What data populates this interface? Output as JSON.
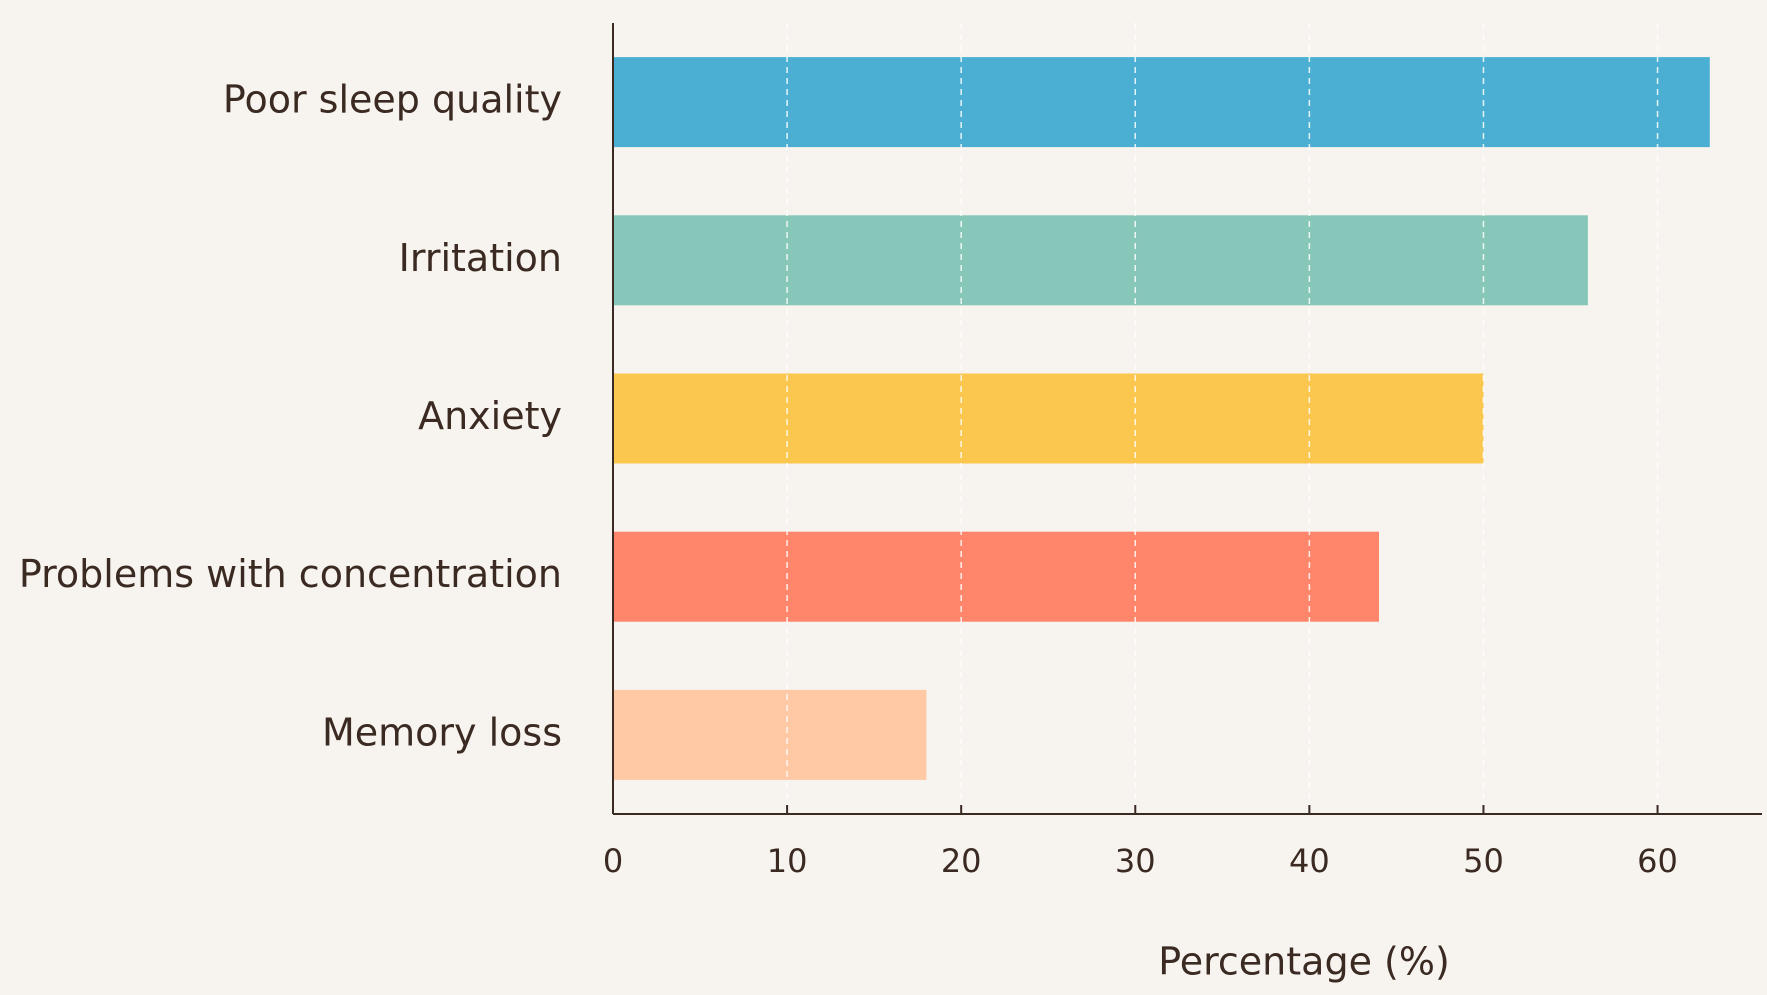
{
  "chart_data": {
    "type": "barh",
    "categories": [
      "Poor sleep quality",
      "Irritation",
      "Anxiety",
      "Problems with concentration",
      "Memory loss"
    ],
    "values": [
      63,
      56,
      50,
      44,
      18
    ],
    "colors": [
      "#4bafd4",
      "#87c7b9",
      "#fbc74f",
      "#ff866a",
      "#ffc9a6"
    ],
    "x_label": "Percentage (%)",
    "xlim": [
      0,
      66
    ],
    "xticks": [
      0,
      10,
      20,
      30,
      40,
      50,
      60
    ],
    "grid": true
  }
}
